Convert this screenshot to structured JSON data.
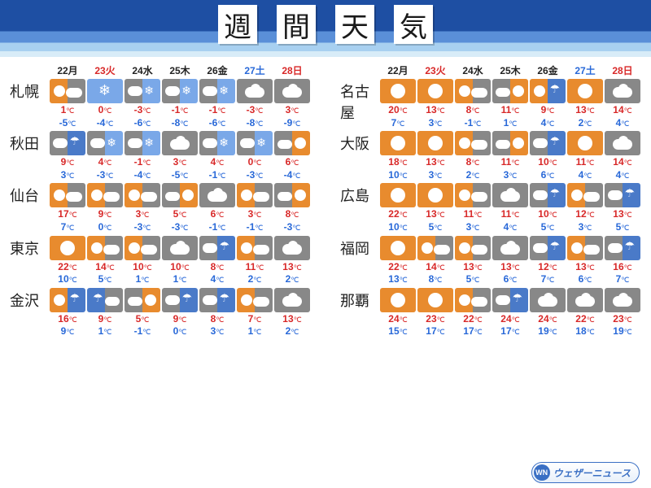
{
  "title_letters": [
    "週",
    "間",
    "天",
    "気"
  ],
  "days": [
    {
      "num": "22",
      "dow": "月",
      "cls": ""
    },
    {
      "num": "23",
      "dow": "火",
      "cls": "tue"
    },
    {
      "num": "24",
      "dow": "水",
      "cls": ""
    },
    {
      "num": "25",
      "dow": "木",
      "cls": ""
    },
    {
      "num": "26",
      "dow": "金",
      "cls": ""
    },
    {
      "num": "27",
      "dow": "土",
      "cls": "sat"
    },
    {
      "num": "28",
      "dow": "日",
      "cls": "sun"
    }
  ],
  "columns": [
    [
      {
        "city": "札幌",
        "fc": [
          {
            "w": "sun-cloud",
            "h": "1",
            "l": "-5"
          },
          {
            "w": "snowy",
            "h": "0",
            "l": "-4"
          },
          {
            "w": "snow",
            "h": "-3",
            "l": "-6"
          },
          {
            "w": "snow",
            "h": "-1",
            "l": "-8"
          },
          {
            "w": "snow",
            "h": "-1",
            "l": "-6"
          },
          {
            "w": "cloud",
            "h": "-3",
            "l": "-8"
          },
          {
            "w": "cloud",
            "h": "3",
            "l": "-9"
          }
        ]
      },
      {
        "city": "秋田",
        "fc": [
          {
            "w": "rain",
            "h": "9",
            "l": "3"
          },
          {
            "w": "snow",
            "h": "4",
            "l": "-3"
          },
          {
            "w": "snow",
            "h": "-1",
            "l": "-4"
          },
          {
            "w": "cloud",
            "h": "3",
            "l": "-5"
          },
          {
            "w": "snow",
            "h": "4",
            "l": "-1"
          },
          {
            "w": "snow",
            "h": "0",
            "l": "-3"
          },
          {
            "w": "cloud-sun",
            "h": "6",
            "l": "-4"
          }
        ]
      },
      {
        "city": "仙台",
        "fc": [
          {
            "w": "sun-cloud",
            "h": "17",
            "l": "7"
          },
          {
            "w": "sun-cloud",
            "h": "9",
            "l": "0"
          },
          {
            "w": "sun-cloud",
            "h": "3",
            "l": "-3"
          },
          {
            "w": "cloud-sun",
            "h": "5",
            "l": "-3"
          },
          {
            "w": "cloud",
            "h": "6",
            "l": "-1"
          },
          {
            "w": "sun-cloud",
            "h": "3",
            "l": "-1"
          },
          {
            "w": "cloud-sun",
            "h": "8",
            "l": "-3"
          }
        ]
      },
      {
        "city": "東京",
        "fc": [
          {
            "w": "sun",
            "h": "22",
            "l": "10"
          },
          {
            "w": "sun-cloud",
            "h": "14",
            "l": "5"
          },
          {
            "w": "sun-cloud",
            "h": "10",
            "l": "1"
          },
          {
            "w": "cloud",
            "h": "10",
            "l": "1"
          },
          {
            "w": "rain",
            "h": "8",
            "l": "4"
          },
          {
            "w": "sun-cloud",
            "h": "11",
            "l": "2"
          },
          {
            "w": "cloud",
            "h": "13",
            "l": "2"
          }
        ]
      },
      {
        "city": "金沢",
        "fc": [
          {
            "w": "sun-rain",
            "h": "16",
            "l": "9"
          },
          {
            "w": "rain-cloud",
            "h": "9",
            "l": "1"
          },
          {
            "w": "cloud-sun",
            "h": "5",
            "l": "-1"
          },
          {
            "w": "rain",
            "h": "9",
            "l": "0"
          },
          {
            "w": "rain",
            "h": "8",
            "l": "3"
          },
          {
            "w": "sun-cloud",
            "h": "7",
            "l": "1"
          },
          {
            "w": "cloud",
            "h": "13",
            "l": "2"
          }
        ]
      }
    ],
    [
      {
        "city": "名古屋",
        "fc": [
          {
            "w": "sun",
            "h": "20",
            "l": "7"
          },
          {
            "w": "sun",
            "h": "13",
            "l": "3"
          },
          {
            "w": "sun-cloud",
            "h": "8",
            "l": "-1"
          },
          {
            "w": "cloud-sun",
            "h": "11",
            "l": "1"
          },
          {
            "w": "sun-rain",
            "h": "9",
            "l": "4"
          },
          {
            "w": "sun",
            "h": "13",
            "l": "2"
          },
          {
            "w": "cloud",
            "h": "14",
            "l": "4"
          }
        ]
      },
      {
        "city": "大阪",
        "fc": [
          {
            "w": "sun",
            "h": "18",
            "l": "10"
          },
          {
            "w": "sun",
            "h": "13",
            "l": "3"
          },
          {
            "w": "sun-cloud",
            "h": "8",
            "l": "2"
          },
          {
            "w": "cloud-sun",
            "h": "11",
            "l": "3"
          },
          {
            "w": "rain",
            "h": "10",
            "l": "6"
          },
          {
            "w": "sun",
            "h": "11",
            "l": "4"
          },
          {
            "w": "cloud",
            "h": "14",
            "l": "4"
          }
        ]
      },
      {
        "city": "広島",
        "fc": [
          {
            "w": "sun",
            "h": "22",
            "l": "10"
          },
          {
            "w": "sun",
            "h": "13",
            "l": "5"
          },
          {
            "w": "sun-cloud",
            "h": "11",
            "l": "3"
          },
          {
            "w": "cloud",
            "h": "11",
            "l": "4"
          },
          {
            "w": "rain",
            "h": "10",
            "l": "5"
          },
          {
            "w": "sun-cloud",
            "h": "12",
            "l": "3"
          },
          {
            "w": "rain",
            "h": "13",
            "l": "5"
          }
        ]
      },
      {
        "city": "福岡",
        "fc": [
          {
            "w": "sun",
            "h": "22",
            "l": "13"
          },
          {
            "w": "sun-cloud",
            "h": "14",
            "l": "8"
          },
          {
            "w": "sun-cloud",
            "h": "13",
            "l": "5"
          },
          {
            "w": "cloud",
            "h": "13",
            "l": "6"
          },
          {
            "w": "rain",
            "h": "12",
            "l": "7"
          },
          {
            "w": "sun-cloud",
            "h": "13",
            "l": "6"
          },
          {
            "w": "rain",
            "h": "16",
            "l": "7"
          }
        ]
      },
      {
        "city": "那覇",
        "fc": [
          {
            "w": "sun",
            "h": "24",
            "l": "15"
          },
          {
            "w": "sun",
            "h": "23",
            "l": "17"
          },
          {
            "w": "sun-cloud",
            "h": "22",
            "l": "17"
          },
          {
            "w": "rain",
            "h": "24",
            "l": "17"
          },
          {
            "w": "cloud",
            "h": "24",
            "l": "19"
          },
          {
            "w": "cloud",
            "h": "22",
            "l": "18"
          },
          {
            "w": "cloud",
            "h": "23",
            "l": "19"
          }
        ]
      }
    ]
  ],
  "deg_label": "℃",
  "brand": {
    "logo": "WN",
    "text": "ウェザーニュース"
  },
  "colors": {
    "sun_bg": "#e88b2e",
    "cloud_bg": "#888888",
    "rain_bg": "#4a7ac8",
    "snow_bg": "#7aa8e8",
    "high": "#d82828",
    "low": "#2868d8",
    "header_dark": "#1e4fa3"
  }
}
